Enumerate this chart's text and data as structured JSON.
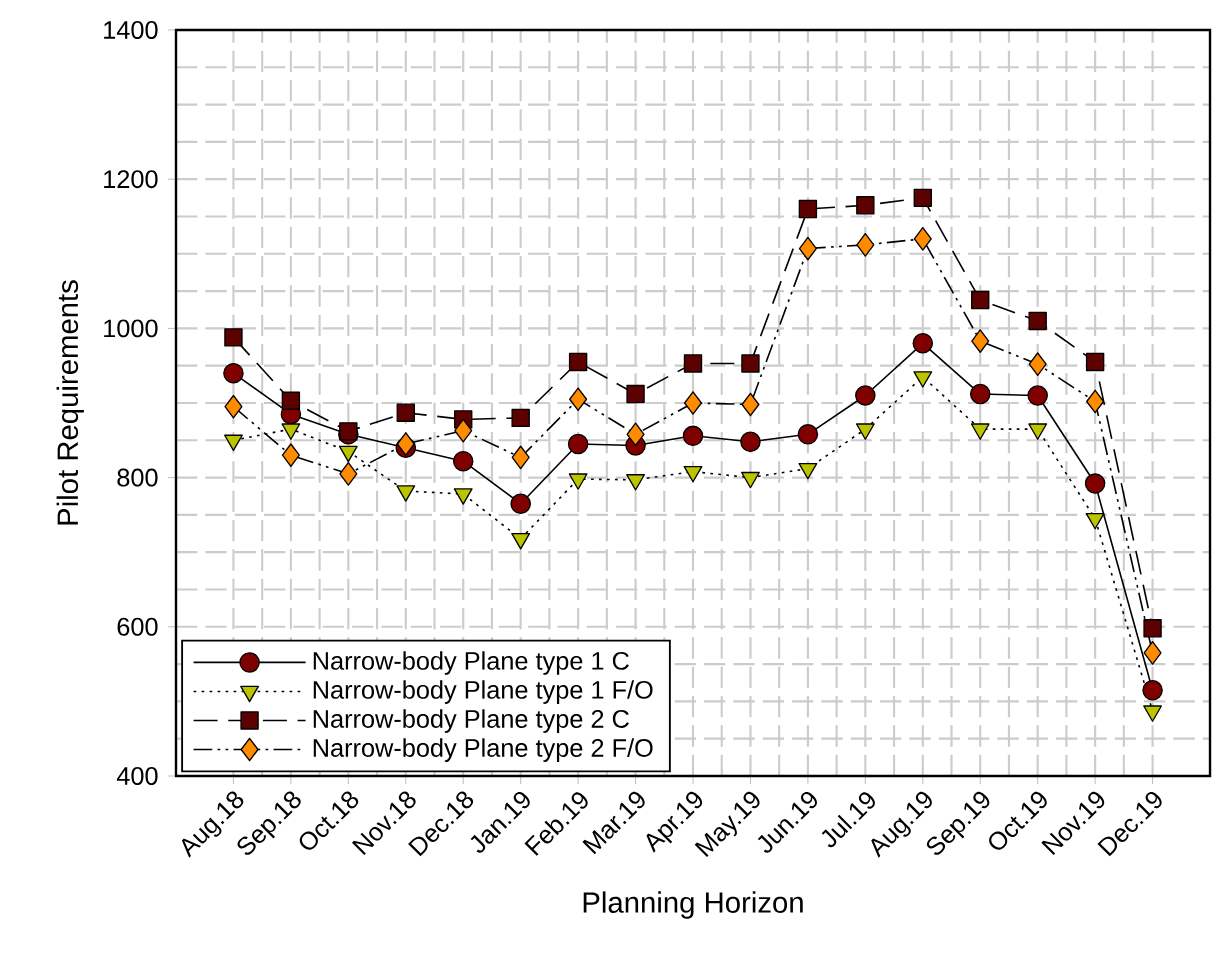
{
  "chart_data": {
    "type": "line",
    "xlabel": "Planning Horizon",
    "ylabel": "Pilot Requirements",
    "categories": [
      "Aug.18",
      "Sep.18",
      "Oct.18",
      "Nov.18",
      "Dec.18",
      "Jan.19",
      "Feb.19",
      "Mar.19",
      "Apr.19",
      "May.19",
      "Jun.19",
      "Jul.19",
      "Aug.19",
      "Sep.19",
      "Oct.19",
      "Nov.19",
      "Dec.19"
    ],
    "series": [
      {
        "name": "Narrow-body Plane type 1 C",
        "color": "#800000",
        "marker": "circle",
        "line_style": "solid",
        "values": [
          940,
          885,
          858,
          840,
          822,
          765,
          845,
          843,
          856,
          848,
          858,
          910,
          980,
          912,
          910,
          792,
          515
        ]
      },
      {
        "name": "Narrow-body Plane type 1 F/O",
        "color": "#bcc400",
        "marker": "triangle",
        "line_style": "dotted",
        "values": [
          850,
          865,
          835,
          782,
          778,
          718,
          798,
          797,
          808,
          800,
          812,
          865,
          935,
          865,
          865,
          745,
          487
        ]
      },
      {
        "name": "Narrow-body Plane type 2 C",
        "color": "#5c0000",
        "marker": "square",
        "line_style": "dashed",
        "values": [
          988,
          903,
          862,
          887,
          878,
          880,
          955,
          912,
          953,
          953,
          1160,
          1165,
          1175,
          1038,
          1010,
          955,
          598
        ]
      },
      {
        "name": "Narrow-body Plane type 2 F/O",
        "color": "#ff8c00",
        "marker": "diamond",
        "line_style": "dashdotdotted",
        "values": [
          895,
          830,
          805,
          845,
          863,
          827,
          905,
          858,
          900,
          898,
          1107,
          1112,
          1120,
          983,
          952,
          902,
          565
        ]
      }
    ],
    "ylim": [
      400,
      1400
    ],
    "yticks": [
      400,
      600,
      800,
      1000,
      1200,
      1400
    ],
    "grid": true,
    "legend": "bottom left"
  }
}
